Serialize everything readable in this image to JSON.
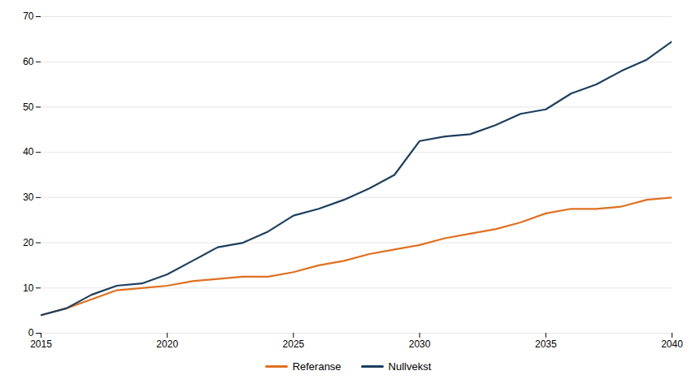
{
  "chart_data": {
    "type": "line",
    "x": [
      2015,
      2016,
      2017,
      2018,
      2019,
      2020,
      2021,
      2022,
      2023,
      2024,
      2025,
      2026,
      2027,
      2028,
      2029,
      2030,
      2031,
      2032,
      2033,
      2034,
      2035,
      2036,
      2037,
      2038,
      2039,
      2040
    ],
    "series": [
      {
        "name": "Referanse",
        "color": "#E07020",
        "values": [
          4.0,
          5.5,
          7.5,
          9.5,
          10.0,
          10.5,
          11.5,
          12.0,
          12.5,
          12.5,
          13.5,
          15.0,
          16.0,
          17.5,
          18.5,
          19.5,
          21.0,
          22.0,
          23.0,
          24.5,
          26.5,
          27.5,
          27.5,
          28.0,
          29.5,
          30.0
        ]
      },
      {
        "name": "Nullvekst",
        "color": "#1C3F5E",
        "values": [
          4.0,
          5.5,
          8.5,
          10.5,
          11.0,
          13.0,
          16.0,
          19.0,
          20.0,
          22.5,
          26.0,
          27.5,
          29.5,
          32.0,
          35.0,
          42.5,
          43.5,
          44.0,
          46.0,
          48.5,
          49.5,
          53.0,
          55.0,
          58.0,
          60.5,
          64.5
        ]
      }
    ],
    "xlim": [
      2015,
      2040
    ],
    "xticks": [
      2015,
      2020,
      2025,
      2030,
      2035,
      2040
    ],
    "ylim": [
      0,
      70
    ],
    "yticks": [
      0,
      10,
      20,
      30,
      40,
      50,
      60,
      70
    ],
    "grid": "y",
    "legend": "bottom"
  }
}
